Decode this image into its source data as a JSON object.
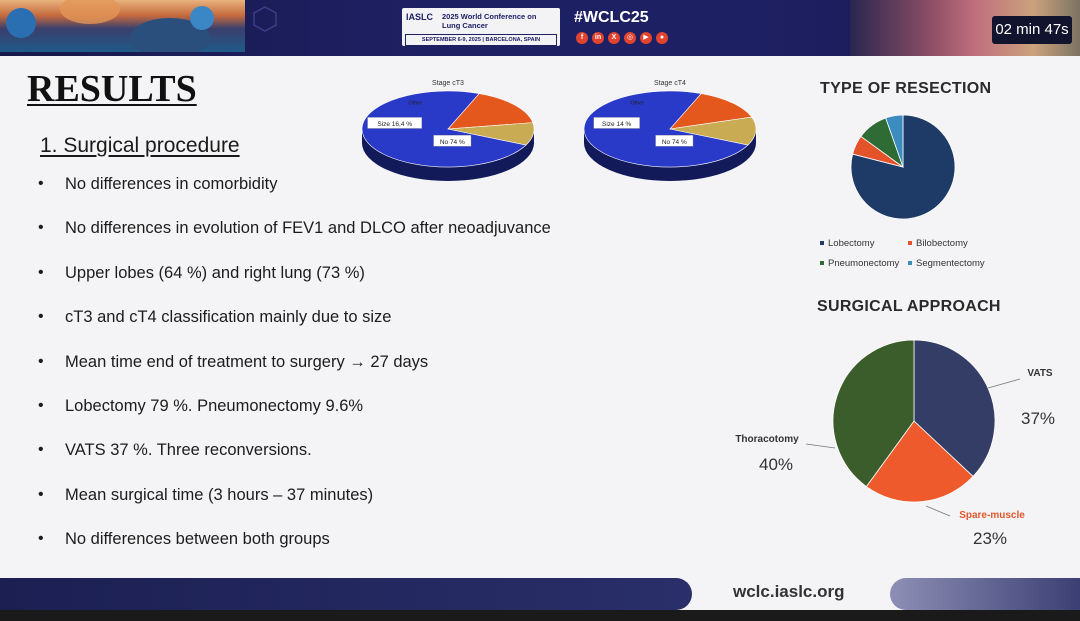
{
  "header": {
    "conference_logo": "IASLC",
    "conference_title": "2025 World Conference on Lung Cancer",
    "conference_dates": "SEPTEMBER 6-9, 2025 | BARCELONA, SPAIN",
    "hashtag": "#WCLC25",
    "social_icons": [
      "facebook-icon",
      "linkedin-icon",
      "x-icon",
      "instagram-icon",
      "youtube-icon",
      "wechat-icon"
    ],
    "timer": "02 min 47s"
  },
  "slide": {
    "title": "RESULTS",
    "subtitle": "1. Surgical procedure",
    "bullets": [
      "No differences in comorbidity",
      "No differences in evolution of FEV1 and DLCO after neoadjuvance",
      "Upper lobes (64 %) and right lung (73 %)",
      "cT3 and cT4  classification mainly due to size",
      "Mean time end of treatment to surgery → 27 days",
      "Lobectomy 79 %. Pneumonectomy 9.6%",
      "VATS 37 %. Three reconversions.",
      "Mean surgical time (3 hours – 37 minutes)",
      "No differences between both groups"
    ]
  },
  "footer": {
    "url": "wclc.iaslc.org"
  },
  "chart_data": [
    {
      "type": "pie",
      "title": "Stage cT3",
      "slices": [
        {
          "label": "No 74 %",
          "value": 74,
          "color": "#2a3ac8"
        },
        {
          "label": "Size 16,4 %",
          "value": 16.4,
          "color": "#e4581e"
        },
        {
          "label": "Other",
          "value": 9.6,
          "color": "#c9ab53"
        }
      ]
    },
    {
      "type": "pie",
      "title": "Stage cT4",
      "slices": [
        {
          "label": "No 74 %",
          "value": 74,
          "color": "#2a3ac8"
        },
        {
          "label": "Size 14 %",
          "value": 14,
          "color": "#e4581e"
        },
        {
          "label": "Other",
          "value": 12,
          "color": "#c9ab53"
        }
      ]
    },
    {
      "type": "pie",
      "title": "TYPE OF RESECTION",
      "legend": [
        "Lobectomy",
        "Bilobectomy",
        "Pneumonectomy",
        "Segmentectomy"
      ],
      "slices": [
        {
          "label": "Lobectomy",
          "value": 79,
          "color": "#1e3a66"
        },
        {
          "label": "Bilobectomy",
          "value": 6,
          "color": "#e4522a"
        },
        {
          "label": "Pneumonectomy",
          "value": 9.6,
          "color": "#2f6b34"
        },
        {
          "label": "Segmentectomy",
          "value": 5.4,
          "color": "#3c8dbf"
        }
      ]
    },
    {
      "type": "pie",
      "title": "SURGICAL APPROACH",
      "slices": [
        {
          "label": "VATS",
          "pct": "37%",
          "value": 37,
          "color": "#343d66"
        },
        {
          "label": "Spare-muscle",
          "pct": "23%",
          "value": 23,
          "color": "#ee5a2c"
        },
        {
          "label": "Thoracotomy",
          "pct": "40%",
          "value": 40,
          "color": "#3b5d2b"
        }
      ]
    }
  ]
}
